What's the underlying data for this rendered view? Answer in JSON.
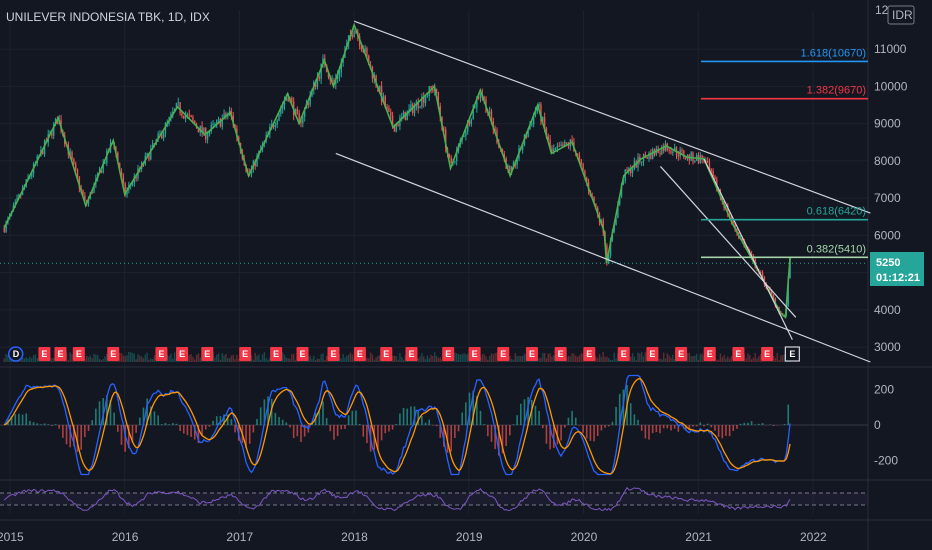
{
  "chart_data": {
    "type": "candlestick",
    "title": "UNILEVER INDONESIA TBK, 1D, IDX",
    "currency": "IDR",
    "currency_top_label": "12",
    "x_ticks": [
      "2015",
      "2016",
      "2017",
      "2018",
      "2019",
      "2020",
      "2021",
      "2022"
    ],
    "x_range": [
      2015.0,
      2022.5
    ],
    "price": {
      "y_ticks": [
        3000,
        4000,
        5000,
        6000,
        7000,
        8000,
        9000,
        10000,
        11000
      ],
      "y_tick_labels": [
        "3000",
        "4000",
        "5000",
        "6000",
        "7000",
        "8000",
        "9000",
        "10000",
        "11000"
      ],
      "ylim": [
        2600,
        12050
      ],
      "last_price": 5250,
      "last_price_label": "5250",
      "countdown": "01:12:21",
      "zigzag": [
        [
          2014.95,
          6200
        ],
        [
          2015.42,
          9150
        ],
        [
          2015.66,
          6800
        ],
        [
          2015.9,
          8550
        ],
        [
          2016.0,
          7100
        ],
        [
          2016.46,
          9450
        ],
        [
          2016.7,
          8700
        ],
        [
          2016.92,
          9300
        ],
        [
          2017.08,
          7600
        ],
        [
          2017.42,
          9800
        ],
        [
          2017.52,
          9000
        ],
        [
          2017.74,
          10700
        ],
        [
          2017.82,
          10000
        ],
        [
          2018.0,
          11650
        ],
        [
          2018.34,
          8900
        ],
        [
          2018.7,
          10000
        ],
        [
          2018.84,
          7800
        ],
        [
          2019.1,
          9900
        ],
        [
          2019.36,
          7600
        ],
        [
          2019.6,
          9500
        ],
        [
          2019.72,
          8200
        ],
        [
          2019.9,
          8500
        ],
        [
          2020.18,
          6100
        ],
        [
          2020.2,
          5250
        ],
        [
          2020.35,
          7600
        ],
        [
          2020.5,
          8050
        ],
        [
          2020.72,
          8400
        ],
        [
          2020.9,
          8100
        ],
        [
          2021.05,
          8050
        ],
        [
          2021.3,
          6300
        ],
        [
          2021.55,
          4900
        ],
        [
          2021.72,
          3900
        ],
        [
          2021.76,
          3800
        ],
        [
          2021.8,
          5400
        ]
      ],
      "trendlines": [
        {
          "from": [
            2018.0,
            11750
          ],
          "to": [
            2022.5,
            6600
          ]
        },
        {
          "from": [
            2017.84,
            8200
          ],
          "to": [
            2022.5,
            2600
          ]
        },
        {
          "from": [
            2020.67,
            7850
          ],
          "to": [
            2021.85,
            3800
          ]
        },
        {
          "from": [
            2021.05,
            8050
          ],
          "to": [
            2021.82,
            3200
          ]
        }
      ],
      "fib_levels": [
        {
          "label": "1.618(10670)",
          "value": 10670,
          "color": "#2196f3"
        },
        {
          "label": "1.382(9670)",
          "value": 9670,
          "color": "#f23645"
        },
        {
          "label": "0.618(6420)",
          "value": 6420,
          "color": "#26a69a"
        },
        {
          "label": "0.382(5410)",
          "value": 5410,
          "color": "#a5d6a7"
        }
      ],
      "earnings_markers": [
        {
          "x": 2015.05,
          "label": "D",
          "kind": "D"
        },
        {
          "x": 2015.3,
          "label": "E",
          "kind": "E"
        },
        {
          "x": 2015.44,
          "label": "E",
          "kind": "E"
        },
        {
          "x": 2015.6,
          "label": "E",
          "kind": "E"
        },
        {
          "x": 2015.9,
          "label": "E",
          "kind": "E"
        },
        {
          "x": 2016.32,
          "label": "E",
          "kind": "E"
        },
        {
          "x": 2016.5,
          "label": "E",
          "kind": "E"
        },
        {
          "x": 2016.72,
          "label": "E",
          "kind": "E"
        },
        {
          "x": 2017.05,
          "label": "E",
          "kind": "E"
        },
        {
          "x": 2017.32,
          "label": "E",
          "kind": "E"
        },
        {
          "x": 2017.55,
          "label": "E",
          "kind": "E"
        },
        {
          "x": 2017.82,
          "label": "E",
          "kind": "E"
        },
        {
          "x": 2018.05,
          "label": "E",
          "kind": "E"
        },
        {
          "x": 2018.28,
          "label": "E",
          "kind": "E"
        },
        {
          "x": 2018.5,
          "label": "E",
          "kind": "E"
        },
        {
          "x": 2018.82,
          "label": "E",
          "kind": "E"
        },
        {
          "x": 2019.05,
          "label": "E",
          "kind": "E"
        },
        {
          "x": 2019.3,
          "label": "E",
          "kind": "E"
        },
        {
          "x": 2019.55,
          "label": "E",
          "kind": "E"
        },
        {
          "x": 2019.8,
          "label": "E",
          "kind": "E"
        },
        {
          "x": 2020.05,
          "label": "E",
          "kind": "E"
        },
        {
          "x": 2020.35,
          "label": "E",
          "kind": "E"
        },
        {
          "x": 2020.6,
          "label": "E",
          "kind": "E"
        },
        {
          "x": 2020.85,
          "label": "E",
          "kind": "E"
        },
        {
          "x": 2021.1,
          "label": "E",
          "kind": "E"
        },
        {
          "x": 2021.35,
          "label": "E",
          "kind": "E"
        },
        {
          "x": 2021.6,
          "label": "E",
          "kind": "E"
        },
        {
          "x": 2021.82,
          "label": "E",
          "kind": "E-next"
        }
      ]
    },
    "oscillator": {
      "y_ticks": [
        200,
        0,
        -200
      ],
      "y_tick_labels": [
        "200",
        "0",
        "-200"
      ],
      "ylim": [
        -300,
        300
      ],
      "series": [
        {
          "name": "",
          "color": "#2962ff"
        },
        {
          "name": "",
          "color": "#ff9800"
        }
      ]
    },
    "rsi": {
      "ylim": [
        0,
        100
      ],
      "band_levels": [
        70,
        30
      ],
      "color": "#7e57c2"
    },
    "colors": {
      "background": "#131722",
      "up": "#26a69a",
      "down": "#ef5350",
      "zigzag": "#4caf50",
      "trendline": "#d1d4dc",
      "grid": "#1e222d",
      "price_tag": "#26a69a"
    }
  }
}
